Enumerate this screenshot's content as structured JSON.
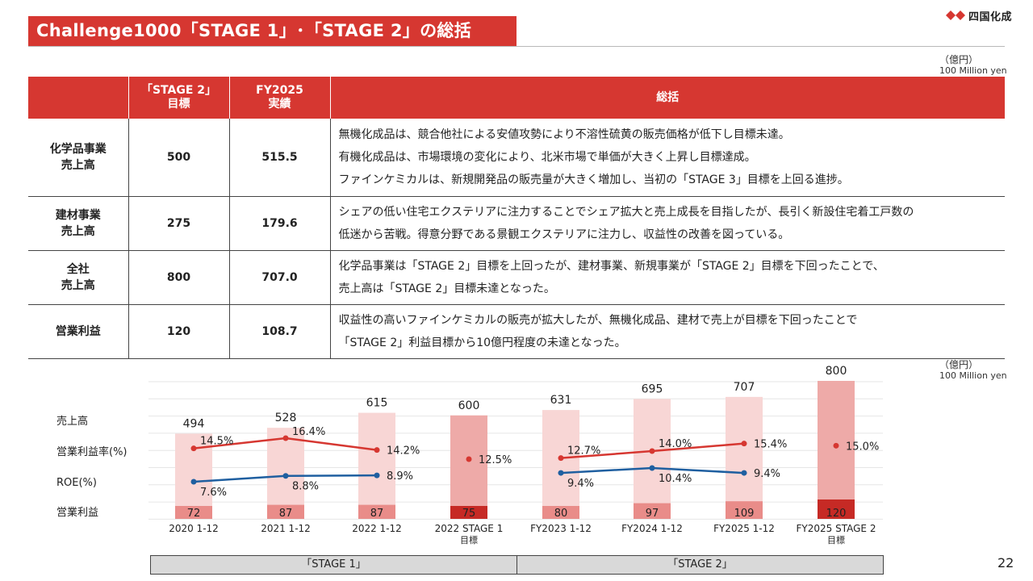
{
  "header": {
    "title": "Challenge1000「STAGE 1」･「STAGE 2」の総括",
    "logo_text": "四国化成",
    "unit_jp": "（億円）",
    "unit_en": "100 Million yen"
  },
  "table": {
    "headers": [
      "",
      "「STAGE 2」\n目標",
      "FY2025\n実績",
      "総括"
    ],
    "rows": [
      {
        "label": "化学品事業\n売上高",
        "target": "500",
        "actual": "515.5",
        "lines": [
          "無機化成品は、競合他社による安値攻勢により不溶性硫黄の販売価格が低下し目標未達。",
          "有機化成品は、市場環境の変化により、北米市場で単価が大きく上昇し目標達成。",
          "ファインケミカルは、新規開発品の販売量が大きく増加し、当初の「STAGE 3」目標を上回る進捗。"
        ]
      },
      {
        "label": "建材事業\n売上高",
        "target": "275",
        "actual": "179.6",
        "lines": [
          "シェアの低い住宅エクステリアに注力することでシェア拡大と売上成長を目指したが、長引く新設住宅着工戸数の",
          "低迷から苦戦。得意分野である景観エクステリアに注力し、収益性の改善を図っている。"
        ]
      },
      {
        "label": "全社\n売上高",
        "target": "800",
        "actual": "707.0",
        "lines": [
          "化学品事業は「STAGE 2」目標を上回ったが、建材事業、新規事業が「STAGE 2」目標を下回ったことで、",
          "売上高は「STAGE 2」目標未達となった。"
        ]
      },
      {
        "label": "営業利益",
        "target": "120",
        "actual": "108.7",
        "lines": [
          "収益性の高いファインケミカルの販売が拡大したが、無機化成品、建材で売上が目標を下回ったことで",
          "「STAGE 2」利益目標から10億円程度の未達となった。"
        ]
      }
    ]
  },
  "chart_data": {
    "type": "bar",
    "row_labels": [
      "売上高",
      "営業利益率(%)",
      "ROE(%)",
      "営業利益"
    ],
    "categories": [
      "2020 1-12",
      "2021 1-12",
      "2022 1-12",
      "2022 STAGE 1",
      "FY2023 1-12",
      "FY2024 1-12",
      "FY2025 1-12",
      "FY2025 STAGE 2"
    ],
    "category_sublabels": [
      "",
      "",
      "",
      "目標",
      "",
      "",
      "",
      "目標"
    ],
    "is_target": [
      false,
      false,
      false,
      true,
      false,
      false,
      false,
      true
    ],
    "sales": [
      494,
      528,
      615,
      600,
      631,
      695,
      707,
      800
    ],
    "operating_profit": [
      72,
      87,
      87,
      75,
      80,
      97,
      109,
      120
    ],
    "operating_margin": [
      14.5,
      16.4,
      14.2,
      12.5,
      12.7,
      14.0,
      15.4,
      15.0
    ],
    "operating_margin_labels": [
      "14.5%",
      "16.4%",
      "14.2%",
      "12.5%",
      "12.7%",
      "14.0%",
      "15.4%",
      "15.0%"
    ],
    "roe": [
      7.6,
      8.8,
      8.9,
      null,
      9.4,
      10.4,
      9.4,
      null
    ],
    "roe_labels": [
      "7.6%",
      "8.8%",
      "8.9%",
      "",
      "9.4%",
      "10.4%",
      "9.4%",
      ""
    ],
    "ylim": [
      0,
      800
    ],
    "colors": {
      "sales_actual": "#f8d6d5",
      "sales_target": "#eeaaa8",
      "profit_actual": "#e98c89",
      "profit_target": "#c62a25",
      "margin_line": "#d63731",
      "roe_line": "#1f5fa0"
    }
  },
  "footer": {
    "stage1": "「STAGE 1」",
    "stage2": "「STAGE 2」",
    "page": "22"
  }
}
